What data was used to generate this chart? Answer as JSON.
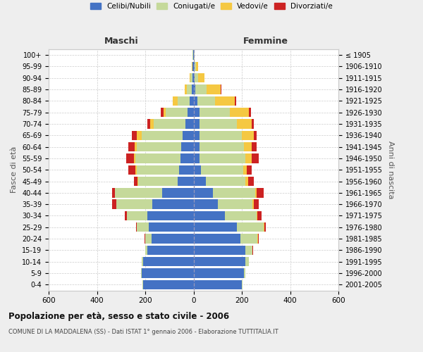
{
  "age_groups": [
    "0-4",
    "5-9",
    "10-14",
    "15-19",
    "20-24",
    "25-29",
    "30-34",
    "35-39",
    "40-44",
    "45-49",
    "50-54",
    "55-59",
    "60-64",
    "65-69",
    "70-74",
    "75-79",
    "80-84",
    "85-89",
    "90-94",
    "95-99",
    "100+"
  ],
  "birth_years": [
    "2001-2005",
    "1996-2000",
    "1991-1995",
    "1986-1990",
    "1981-1985",
    "1976-1980",
    "1971-1975",
    "1966-1970",
    "1961-1965",
    "1956-1960",
    "1951-1955",
    "1946-1950",
    "1941-1945",
    "1936-1940",
    "1931-1935",
    "1926-1930",
    "1921-1925",
    "1916-1920",
    "1911-1915",
    "1906-1910",
    "≤ 1905"
  ],
  "males": {
    "celibe": [
      210,
      215,
      210,
      190,
      175,
      185,
      190,
      170,
      130,
      65,
      60,
      55,
      50,
      45,
      35,
      25,
      15,
      8,
      5,
      3,
      2
    ],
    "coniugato": [
      1,
      2,
      5,
      10,
      25,
      50,
      85,
      150,
      195,
      165,
      175,
      185,
      185,
      170,
      130,
      90,
      50,
      20,
      8,
      2,
      1
    ],
    "vedovo": [
      0,
      0,
      0,
      0,
      0,
      0,
      1,
      1,
      2,
      3,
      5,
      8,
      10,
      20,
      15,
      10,
      20,
      8,
      3,
      1,
      0
    ],
    "divorziato": [
      0,
      0,
      0,
      1,
      2,
      3,
      10,
      15,
      10,
      15,
      30,
      30,
      25,
      20,
      12,
      10,
      2,
      1,
      0,
      0,
      0
    ]
  },
  "females": {
    "nubile": [
      200,
      210,
      215,
      215,
      195,
      180,
      130,
      100,
      80,
      50,
      30,
      25,
      25,
      25,
      25,
      25,
      15,
      8,
      5,
      5,
      2
    ],
    "coniugata": [
      2,
      5,
      15,
      30,
      70,
      110,
      130,
      145,
      175,
      165,
      175,
      190,
      185,
      175,
      155,
      125,
      75,
      45,
      15,
      5,
      1
    ],
    "vedova": [
      0,
      0,
      0,
      0,
      1,
      2,
      3,
      5,
      5,
      10,
      15,
      25,
      30,
      50,
      60,
      80,
      80,
      60,
      25,
      8,
      2
    ],
    "divorziata": [
      0,
      0,
      0,
      2,
      5,
      8,
      20,
      20,
      30,
      25,
      20,
      30,
      20,
      12,
      10,
      8,
      8,
      2,
      1,
      0,
      0
    ]
  },
  "colors": {
    "celibe_nubile": "#4472C4",
    "coniugato_coniugata": "#c5d99a",
    "vedovo_vedova": "#f5c842",
    "divorziato_divorziata": "#cc2222"
  },
  "xlim": 600,
  "title": "Popolazione per età, sesso e stato civile - 2006",
  "subtitle": "COMUNE DI LA MADDALENA (SS) - Dati ISTAT 1° gennaio 2006 - Elaborazione TUTTITALIA.IT",
  "ylabel_left": "Fasce di età",
  "ylabel_right": "Anni di nascita",
  "xlabel_left": "Maschi",
  "xlabel_right": "Femmine",
  "bg_color": "#eeeeee",
  "plot_bg": "#ffffff"
}
